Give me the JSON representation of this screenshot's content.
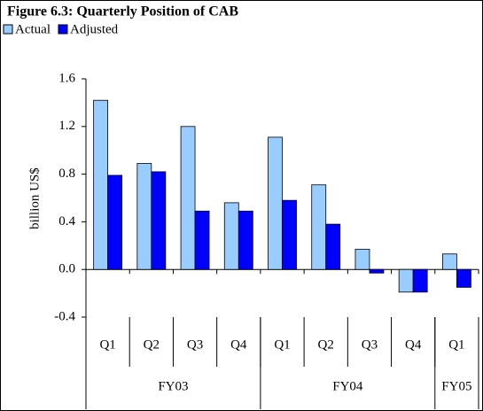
{
  "chart_data": {
    "type": "bar",
    "title": "Figure 6.3: Quarterly Position of CAB",
    "y_label": "billion US$",
    "groups": [
      {
        "name": "FY03",
        "categories": [
          "Q1",
          "Q2",
          "Q3",
          "Q4"
        ]
      },
      {
        "name": "FY04",
        "categories": [
          "Q1",
          "Q2",
          "Q3",
          "Q4"
        ]
      },
      {
        "name": "FY05",
        "categories": [
          "Q1"
        ]
      }
    ],
    "series": [
      {
        "name": "Actual",
        "color": "#99ccff",
        "values": [
          1.42,
          0.89,
          1.2,
          0.56,
          1.11,
          0.71,
          0.17,
          -0.19,
          0.13
        ]
      },
      {
        "name": "Adjusted",
        "color": "#0000ff",
        "values": [
          0.79,
          0.82,
          0.49,
          0.49,
          0.58,
          0.38,
          -0.03,
          -0.19,
          -0.15
        ]
      }
    ],
    "ylim": [
      -0.4,
      1.6
    ],
    "yticks": [
      -0.4,
      {
        "value": 0,
        "label": "0.0"
      },
      0.4,
      0.8,
      1.2,
      1.6
    ],
    "grid": false,
    "legend": "top-left"
  }
}
